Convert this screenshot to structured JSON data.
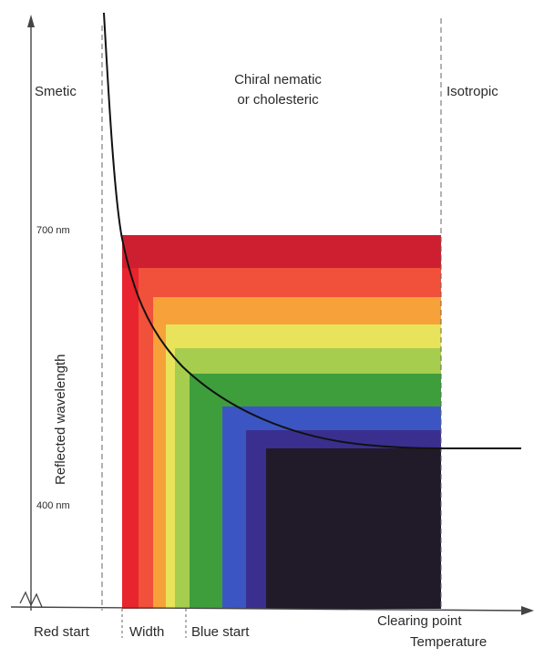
{
  "labels": {
    "smectic": "Smetic",
    "chiral_line1": "Chiral nematic",
    "chiral_line2": "or cholesteric",
    "isotropic": "Isotropic",
    "y_axis": "Reflected wavelength",
    "tick_700": "700 nm",
    "tick_400": "400 nm",
    "red_start": "Red start",
    "width": "Width",
    "blue_start": "Blue start",
    "clearing_point": "Clearing point",
    "temperature": "Temperature"
  },
  "spectrum_bands": [
    {
      "name": "red",
      "color": "#e8242e"
    },
    {
      "name": "red-orange",
      "color": "#f1503a"
    },
    {
      "name": "orange",
      "color": "#f7a13a"
    },
    {
      "name": "yellow",
      "color": "#e8e35a"
    },
    {
      "name": "light-green",
      "color": "#a7cd4f"
    },
    {
      "name": "green",
      "color": "#3f9e3c"
    },
    {
      "name": "blue",
      "color": "#3b55c2"
    },
    {
      "name": "indigo",
      "color": "#3a2f8f"
    },
    {
      "name": "dark",
      "color": "#211a28"
    }
  ],
  "colors": {
    "dark_red_band": "#c81e2f",
    "axis": "#444444",
    "curve": "#111111"
  }
}
